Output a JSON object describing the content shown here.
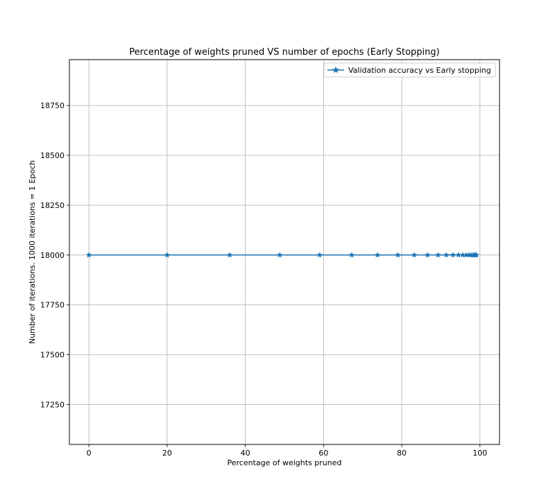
{
  "chart_data": {
    "type": "line",
    "title": "Percentage of weights pruned VS number of epochs (Early Stopping)",
    "xlabel": "Percentage of weights pruned",
    "ylabel": "Number of iterations. 1000 iterations = 1 Epoch",
    "xlim": [
      -5,
      105
    ],
    "ylim": [
      17050,
      18980
    ],
    "xticks": [
      0,
      20,
      40,
      60,
      80,
      100
    ],
    "yticks": [
      17250,
      17500,
      17750,
      18000,
      18250,
      18500,
      18750
    ],
    "grid": true,
    "legend_position": "top-right",
    "series": [
      {
        "name": "Validation accuracy vs Early stopping",
        "color": "#1f77b4",
        "marker": "star",
        "x": [
          0,
          20,
          36,
          48.8,
          59,
          67.2,
          73.8,
          79,
          83.2,
          86.6,
          89.3,
          91.4,
          93.1,
          94.5,
          95.6,
          96.5,
          97.2,
          97.7,
          98.2,
          98.6,
          98.9,
          99.1
        ],
        "y": [
          18000,
          18000,
          18000,
          18000,
          18000,
          18000,
          18000,
          18000,
          18000,
          18000,
          18000,
          18000,
          18000,
          18000,
          18000,
          18000,
          18000,
          18000,
          18000,
          18000,
          18000,
          18000
        ]
      }
    ]
  }
}
